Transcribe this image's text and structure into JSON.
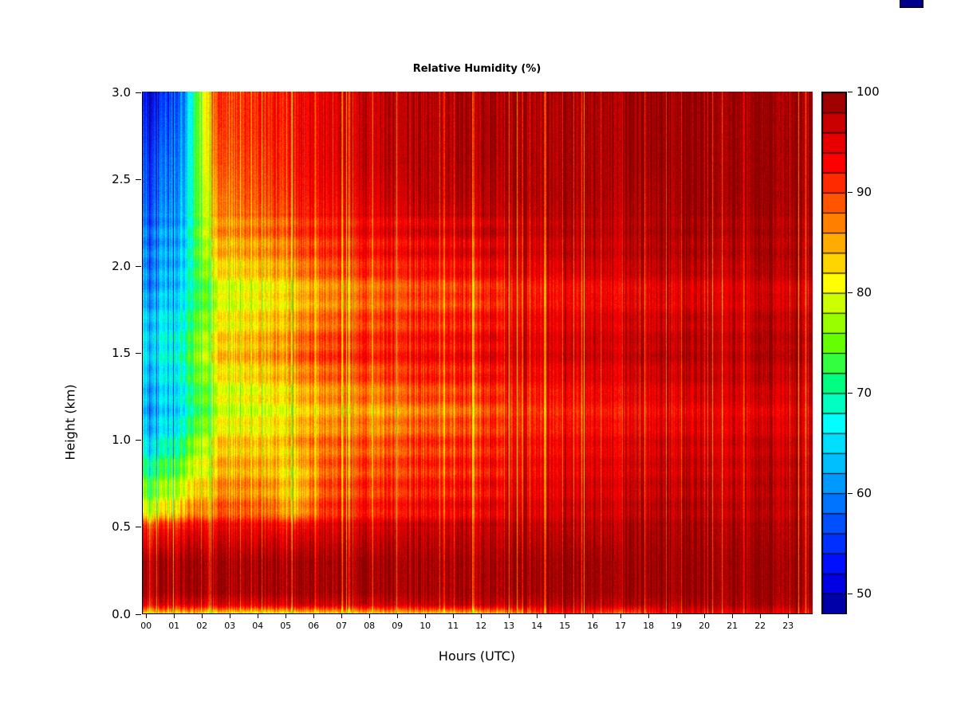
{
  "title": "Relative Humidity (%)",
  "decorations": {
    "corner_swatch_color": "#00008B"
  },
  "chart_data": {
    "type": "heatmap",
    "title": "Relative Humidity (%)",
    "xlabel": "Hours (UTC)",
    "ylabel": "Height (km)",
    "x_hours": [
      0,
      1,
      2,
      3,
      4,
      5,
      6,
      7,
      8,
      9,
      10,
      11,
      12,
      13,
      14,
      15,
      16,
      17,
      18,
      19,
      20,
      21,
      22,
      23
    ],
    "x_tick_labels": [
      "00",
      "01",
      "02",
      "03",
      "04",
      "05",
      "06",
      "07",
      "08",
      "09",
      "10",
      "11",
      "12",
      "13",
      "14",
      "15",
      "16",
      "17",
      "18",
      "19",
      "20",
      "21",
      "22",
      "23"
    ],
    "y_tick_values": [
      0,
      0.5,
      1.0,
      1.5,
      2.0,
      2.5,
      3.0
    ],
    "y_tick_labels": [
      "0.0",
      "0.5",
      "1.0",
      "1.5",
      "2.0",
      "2.5",
      "3.0"
    ],
    "x_range_hours": [
      0,
      24
    ],
    "y_range_km": [
      0,
      3
    ],
    "grid": false,
    "legend_position": "right-colorbar",
    "y_heights_km": [
      0.0,
      0.05,
      0.12,
      0.3,
      0.48,
      0.6,
      0.8,
      1.0,
      1.15,
      1.3,
      1.5,
      1.7,
      1.85,
      2.0,
      2.2,
      2.4,
      2.6,
      2.8,
      3.0
    ],
    "values_orientation": "rows are hours 00-23 UTC; columns are heights (km) listed in y_heights_km; values are relative humidity percent",
    "values": [
      [
        82,
        95,
        99,
        99,
        93,
        80,
        73,
        66,
        63,
        64,
        66,
        65,
        62,
        61,
        60,
        58,
        57,
        55,
        53
      ],
      [
        82,
        95,
        99,
        99,
        94,
        84,
        77,
        71,
        67,
        68,
        70,
        68,
        66,
        65,
        64,
        63,
        62,
        61,
        60
      ],
      [
        81,
        95,
        99,
        99,
        95,
        88,
        84,
        82,
        78,
        79,
        83,
        80,
        78,
        82,
        85,
        86,
        88,
        89,
        90
      ],
      [
        81,
        95,
        99,
        99,
        95,
        89,
        86,
        84,
        80,
        81,
        85,
        82,
        80,
        84,
        87,
        89,
        90,
        91,
        91
      ],
      [
        80,
        95,
        99,
        99,
        95,
        88,
        85,
        83,
        80,
        82,
        86,
        83,
        81,
        85,
        88,
        90,
        91,
        92,
        92
      ],
      [
        81,
        96,
        99,
        99,
        94,
        84,
        82,
        85,
        82,
        84,
        88,
        85,
        83,
        87,
        90,
        92,
        93,
        93,
        93
      ],
      [
        82,
        96,
        99,
        99,
        96,
        91,
        89,
        88,
        85,
        87,
        91,
        88,
        86,
        90,
        92,
        94,
        95,
        95,
        95
      ],
      [
        82,
        96,
        99,
        99,
        96,
        92,
        90,
        89,
        86,
        88,
        92,
        89,
        87,
        91,
        93,
        95,
        96,
        96,
        96
      ],
      [
        83,
        96,
        99,
        99,
        96,
        92,
        90,
        88,
        85,
        88,
        92,
        90,
        88,
        92,
        94,
        96,
        97,
        97,
        97
      ],
      [
        83,
        96,
        99,
        99,
        97,
        93,
        91,
        90,
        87,
        90,
        93,
        91,
        89,
        93,
        95,
        97,
        98,
        98,
        98
      ],
      [
        83,
        97,
        99,
        99,
        97,
        94,
        92,
        91,
        88,
        91,
        94,
        92,
        90,
        94,
        96,
        98,
        98,
        98,
        98
      ],
      [
        83,
        97,
        99,
        99,
        97,
        94,
        92,
        91,
        88,
        91,
        94,
        92,
        90,
        94,
        96,
        98,
        99,
        99,
        99
      ],
      [
        84,
        97,
        99,
        99,
        97,
        95,
        93,
        92,
        90,
        92,
        95,
        93,
        91,
        95,
        97,
        98,
        99,
        99,
        99
      ],
      [
        86,
        97,
        100,
        100,
        98,
        96,
        94,
        93,
        91,
        93,
        96,
        94,
        92,
        96,
        97,
        99,
        99,
        99,
        99
      ],
      [
        92,
        98,
        100,
        100,
        98,
        96,
        95,
        94,
        92,
        94,
        96,
        95,
        93,
        96,
        98,
        99,
        99,
        99,
        99
      ],
      [
        93,
        98,
        100,
        100,
        98,
        97,
        95,
        94,
        92,
        94,
        97,
        95,
        93,
        97,
        98,
        99,
        99,
        99,
        99
      ],
      [
        90,
        98,
        100,
        100,
        98,
        97,
        96,
        95,
        93,
        95,
        97,
        96,
        94,
        97,
        98,
        99,
        99,
        99,
        99
      ],
      [
        88,
        98,
        100,
        100,
        99,
        97,
        96,
        95,
        93,
        95,
        97,
        96,
        94,
        97,
        98,
        99,
        100,
        100,
        100
      ],
      [
        93,
        98,
        100,
        100,
        99,
        98,
        97,
        96,
        94,
        96,
        98,
        96,
        95,
        98,
        99,
        99,
        100,
        100,
        100
      ],
      [
        94,
        98,
        100,
        100,
        99,
        98,
        97,
        96,
        94,
        96,
        98,
        97,
        95,
        98,
        99,
        100,
        100,
        100,
        100
      ],
      [
        94,
        99,
        100,
        100,
        99,
        98,
        97,
        96,
        95,
        97,
        98,
        97,
        95,
        98,
        99,
        100,
        100,
        100,
        100
      ],
      [
        95,
        99,
        100,
        100,
        99,
        98,
        97,
        97,
        95,
        97,
        98,
        97,
        96,
        98,
        99,
        100,
        100,
        100,
        100
      ],
      [
        95,
        99,
        100,
        100,
        99,
        98,
        98,
        97,
        95,
        97,
        99,
        98,
        96,
        99,
        99,
        100,
        100,
        100,
        100
      ],
      [
        95,
        99,
        100,
        100,
        99,
        98,
        98,
        97,
        96,
        97,
        99,
        98,
        96,
        99,
        99,
        100,
        100,
        100,
        100
      ]
    ],
    "colorbar": {
      "min": 48,
      "max": 100,
      "segment_step": 2,
      "tick_values": [
        50,
        60,
        70,
        80,
        90,
        100
      ],
      "tick_labels": [
        "50",
        "60",
        "70",
        "80",
        "90",
        "100"
      ],
      "stops": [
        [
          48,
          "#00008B"
        ],
        [
          52,
          "#0000FF"
        ],
        [
          58,
          "#0060FF"
        ],
        [
          63,
          "#00BFFF"
        ],
        [
          67,
          "#00FFFF"
        ],
        [
          71,
          "#00FF80"
        ],
        [
          75,
          "#66FF00"
        ],
        [
          79,
          "#CCFF00"
        ],
        [
          81,
          "#FFFF00"
        ],
        [
          84,
          "#FFC000"
        ],
        [
          87,
          "#FF8000"
        ],
        [
          90,
          "#FF4000"
        ],
        [
          93,
          "#FF0000"
        ],
        [
          96,
          "#DC0000"
        ],
        [
          100,
          "#8B0000"
        ]
      ]
    }
  }
}
